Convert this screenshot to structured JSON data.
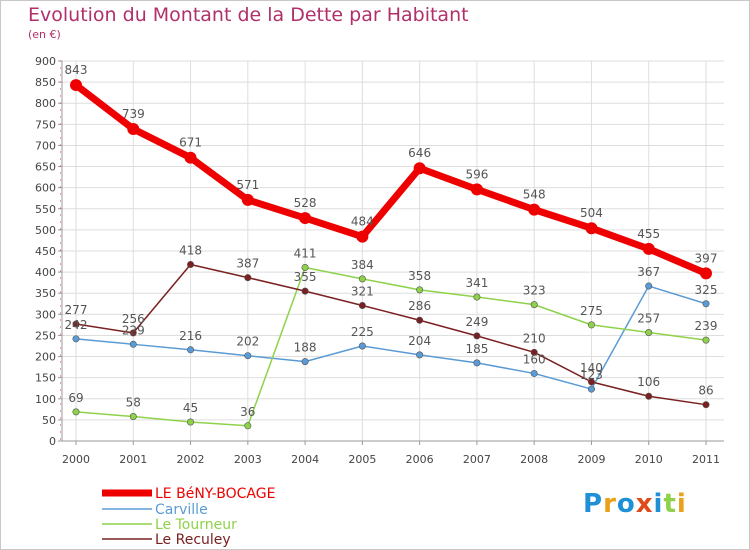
{
  "chart_data": {
    "type": "line",
    "title": "Evolution du Montant de la Dette par Habitant",
    "subtitle": "(en €)",
    "x": [
      "2000",
      "2001",
      "2002",
      "2003",
      "2004",
      "2005",
      "2006",
      "2007",
      "2008",
      "2009",
      "2010",
      "2011"
    ],
    "ylim": [
      0,
      900
    ],
    "yticks": [
      0,
      50,
      100,
      150,
      200,
      250,
      300,
      350,
      400,
      450,
      500,
      550,
      600,
      650,
      700,
      750,
      800,
      850,
      900
    ],
    "grid": true,
    "legend_position": "bottom-left",
    "series": [
      {
        "name": "LE BéNY-BOCAGE",
        "color": "#ee0000",
        "values": [
          843,
          739,
          671,
          571,
          528,
          484,
          646,
          596,
          548,
          504,
          455,
          397
        ]
      },
      {
        "name": "Carville",
        "color": "#5b9bd5",
        "values": [
          242,
          229,
          216,
          202,
          188,
          225,
          204,
          185,
          160,
          123,
          367,
          325
        ]
      },
      {
        "name": "Le Tourneur",
        "color": "#8ed24a",
        "values": [
          69,
          58,
          45,
          36,
          411,
          384,
          358,
          341,
          323,
          275,
          257,
          239
        ]
      },
      {
        "name": "Le Reculey",
        "color": "#7a2020",
        "values": [
          277,
          256,
          418,
          387,
          355,
          321,
          286,
          249,
          210,
          140,
          106,
          86
        ]
      }
    ]
  },
  "logo": {
    "text": "Proxiti",
    "letters": [
      "P",
      "r",
      "o",
      "x",
      "i",
      "t",
      "i"
    ],
    "colors": [
      "#1f8fd6",
      "#e9a11b",
      "#1f8fd6",
      "#e04a1a",
      "#1f8fd6",
      "#8ed24a",
      "#e9a11b"
    ]
  }
}
